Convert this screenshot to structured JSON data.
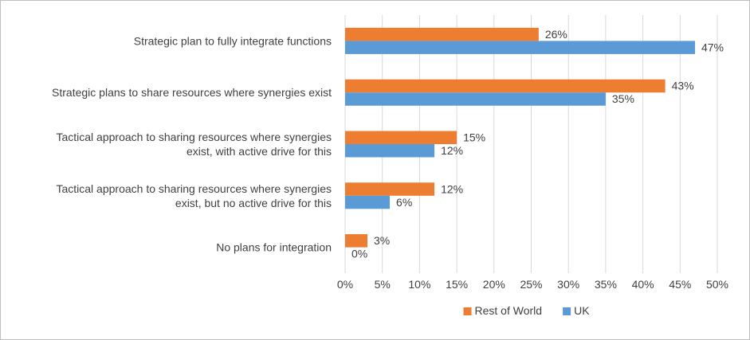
{
  "chart_data": {
    "type": "bar",
    "orientation": "horizontal",
    "categories": [
      [
        "Strategic plan to fully integrate functions"
      ],
      [
        "Strategic plans to share resources where synergies exist"
      ],
      [
        "Tactical approach to sharing resources where synergies",
        "exist, with active drive for this"
      ],
      [
        "Tactical approach to sharing resources where synergies",
        "exist, but no active drive for this"
      ],
      [
        "No plans for integration"
      ]
    ],
    "series": [
      {
        "name": "Rest of World",
        "color": "#ED7D31",
        "values": [
          26,
          43,
          15,
          12,
          3
        ]
      },
      {
        "name": "UK",
        "color": "#5B9BD5",
        "values": [
          47,
          35,
          12,
          6,
          0
        ]
      }
    ],
    "xlim": [
      0,
      50
    ],
    "ticks": [
      0,
      5,
      10,
      15,
      20,
      25,
      30,
      35,
      40,
      45,
      50
    ],
    "tick_suffix": "%",
    "value_suffix": "%",
    "grid": true,
    "legend_position": "bottom"
  }
}
